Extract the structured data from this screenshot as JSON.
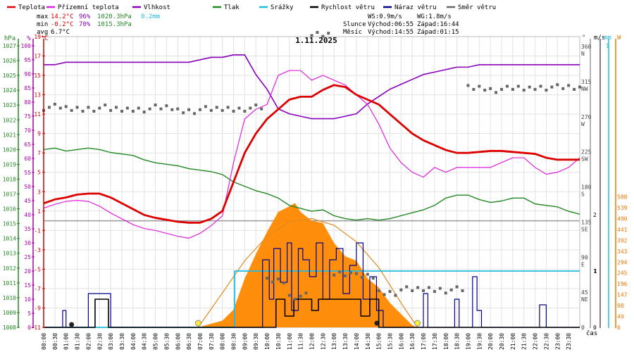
{
  "colors": {
    "temp": "#dd0000",
    "feels": "#dd22dd",
    "hum": "#8800bb",
    "press": "#228822",
    "rain": "#22bbdd",
    "wind": "#000000",
    "gust": "#000088",
    "dir": "#666666",
    "sun": "#ff8800",
    "axis_red": "#cc0000",
    "axis_violet": "#aa00aa",
    "axis_green": "#228822",
    "axis_cyan": "#22bbdd",
    "axis_orange": "#ee7700",
    "grid": "#e2e2e2",
    "zero": "#999999"
  },
  "legend": [
    {
      "label": "Teplota",
      "color": "#dd0000"
    },
    {
      "label": "Přízemní teplota",
      "color": "#dd22dd"
    },
    {
      "label": "Vlhkost",
      "color": "#8800bb"
    },
    {
      "label": "Tlak",
      "color": "#228822"
    },
    {
      "label": "Srážky",
      "color": "#22bbdd"
    },
    {
      "label": "Rychlost větru",
      "color": "#000000"
    },
    {
      "label": "Náraz větru",
      "color": "#000088"
    },
    {
      "label": "Směr větru",
      "color": "#666666"
    }
  ],
  "stats": {
    "max_label": "max",
    "max_temp": "14.2°C",
    "max_hum": "96%",
    "max_press": "1020.3hPa",
    "rain_total": "0.2mm",
    "min_label": "min",
    "min_temp": "-0.2°C",
    "min_hum": "70%",
    "min_press": "1015.3hPa",
    "avg_label": "avg",
    "avg_temp": "6.7°C"
  },
  "info": {
    "ws": "WS:0.9m/s",
    "wg": "WG:1.8m/s",
    "sun_label": "Slunce",
    "sunrise": "Východ:06:55",
    "sunset": "Západ:16:44",
    "moon_label": "Měsíc",
    "moonrise": "Východ:14:55",
    "moonset": "Západ:01:15"
  },
  "chart_data": {
    "type": "line",
    "title": "1.11.2025",
    "xlabel": "čas",
    "x_ticks": [
      "00:00",
      "00:30",
      "01:00",
      "01:30",
      "02:00",
      "02:30",
      "03:00",
      "03:30",
      "04:00",
      "04:30",
      "05:00",
      "05:30",
      "06:00",
      "06:30",
      "07:00",
      "07:30",
      "08:00",
      "08:30",
      "09:00",
      "09:30",
      "10:00",
      "10:30",
      "11:00",
      "11:30",
      "12:00",
      "12:30",
      "13:00",
      "13:30",
      "14:00",
      "14:30",
      "15:00",
      "15:30",
      "16:00",
      "16:30",
      "17:00",
      "17:30",
      "18:00",
      "18:30",
      "19:00",
      "19:30",
      "20:00",
      "20:30",
      "21:00",
      "21:30",
      "22:00",
      "22:30",
      "23:00",
      "23:30"
    ],
    "axes": {
      "pressure": {
        "label": "hPa",
        "range": [
          1008,
          1027.5
        ],
        "ticks": [
          "1027",
          "1026",
          "1025",
          "1024",
          "1023",
          "1022",
          "1021",
          "1020",
          "1019",
          "1018",
          "1017",
          "1016",
          "1015",
          "1014",
          "1013",
          "1012",
          "1011",
          "1010",
          "1009",
          "1008"
        ]
      },
      "humidity": {
        "label": "%",
        "range": [
          -15,
          100
        ],
        "ticks": [
          "100",
          "95",
          "90",
          "85",
          "80",
          "75",
          "70",
          "65",
          "60",
          "55",
          "50",
          "45",
          "40",
          "35",
          "30",
          "25",
          "20",
          "15",
          "10",
          "5",
          "0"
        ]
      },
      "temperature": {
        "label": "°C",
        "range": [
          -11,
          19
        ],
        "ticks": [
          "19",
          "17",
          "15",
          "13",
          "11",
          "9",
          "7",
          "5",
          "3",
          "1",
          "-1",
          "-3",
          "-5",
          "-7",
          "-9",
          "-11"
        ]
      },
      "direction": {
        "label": "°",
        "range": [
          0,
          360
        ],
        "ticks": [
          "360",
          "315",
          "270",
          "225",
          "180",
          "135",
          "90",
          "45",
          "0"
        ],
        "names": [
          "N",
          "NW",
          "W",
          "SW",
          "S",
          "SE",
          "E",
          "NE",
          ""
        ]
      },
      "wind": {
        "label": "m/s",
        "range": [
          0,
          2
        ],
        "ticks": [
          "2",
          "1",
          "0"
        ]
      },
      "rain": {
        "label": "mm",
        "range": [
          0,
          2
        ],
        "ticks": [
          "1"
        ]
      },
      "solar": {
        "label": "W",
        "range": [
          0,
          750
        ],
        "ticks": [
          "588",
          "539",
          "490",
          "441",
          "392",
          "343",
          "294",
          "245",
          "196",
          "147",
          "98",
          "49",
          "0"
        ]
      }
    },
    "series": [
      {
        "name": "Teplota",
        "unit": "°C",
        "x": [
          0,
          0.5,
          1,
          1.5,
          2,
          2.5,
          3,
          3.5,
          4,
          4.5,
          5,
          5.5,
          6,
          6.5,
          7,
          7.5,
          8,
          8.5,
          9,
          9.5,
          10,
          10.5,
          11,
          11.5,
          12,
          12.5,
          13,
          13.5,
          14,
          14.5,
          15,
          15.5,
          16,
          16.5,
          17,
          17.5,
          18,
          18.5,
          19,
          19.5,
          20,
          20.5,
          21,
          21.5,
          22,
          22.5,
          23,
          23.5,
          24
        ],
        "values": [
          1.8,
          2.2,
          2.4,
          2.7,
          2.8,
          2.8,
          2.4,
          1.8,
          1.2,
          0.6,
          0.3,
          0.1,
          -0.1,
          -0.2,
          -0.2,
          0.2,
          1.0,
          4.0,
          7.0,
          9.0,
          10.5,
          11.5,
          12.5,
          12.8,
          12.8,
          13.5,
          14.0,
          13.8,
          13.0,
          12.5,
          12.0,
          11.0,
          10.0,
          9.0,
          8.3,
          7.8,
          7.3,
          7.0,
          7.0,
          7.1,
          7.2,
          7.2,
          7.1,
          7.0,
          6.9,
          6.5,
          6.3,
          6.3,
          6.3
        ]
      },
      {
        "name": "Přízemní teplota",
        "unit": "°C",
        "x": [
          0,
          0.5,
          1,
          1.5,
          2,
          2.5,
          3,
          3.5,
          4,
          4.5,
          5,
          5.5,
          6,
          6.5,
          7,
          7.5,
          8,
          8.5,
          9,
          9.5,
          10,
          10.5,
          11,
          11.5,
          12,
          12.5,
          13,
          13.5,
          14,
          14.5,
          15,
          15.5,
          16,
          16.5,
          17,
          17.5,
          18,
          18.5,
          19,
          19.5,
          20,
          20.5,
          21,
          21.5,
          22,
          22.5,
          23,
          23.5,
          24
        ],
        "values": [
          1.3,
          1.7,
          2.0,
          2.1,
          2.0,
          1.5,
          0.8,
          0.2,
          -0.4,
          -0.8,
          -1.0,
          -1.3,
          -1.6,
          -1.8,
          -1.3,
          -0.5,
          0.5,
          6.0,
          10.5,
          11.5,
          12.0,
          15.0,
          15.5,
          15.5,
          14.5,
          15.0,
          14.5,
          14.0,
          13.0,
          12.0,
          10.0,
          7.5,
          6.0,
          5.0,
          4.5,
          5.5,
          5.0,
          5.5,
          5.5,
          5.5,
          5.5,
          6.0,
          6.5,
          6.5,
          5.5,
          4.8,
          5.0,
          5.5,
          6.5
        ]
      },
      {
        "name": "Vlhkost",
        "unit": "%",
        "x": [
          0,
          0.5,
          1,
          1.5,
          2,
          2.5,
          3,
          3.5,
          4,
          4.5,
          5,
          5.5,
          6,
          6.5,
          7,
          7.5,
          8,
          8.5,
          9,
          9.5,
          10,
          10.5,
          11,
          11.5,
          12,
          12.5,
          13,
          13.5,
          14,
          14.5,
          15,
          15.5,
          16,
          16.5,
          17,
          17.5,
          18,
          18.5,
          19,
          19.5,
          20,
          20.5,
          21,
          21.5,
          22,
          22.5,
          23,
          23.5,
          24
        ],
        "values": [
          92,
          92,
          93,
          93,
          93,
          93,
          93,
          93,
          93,
          93,
          93,
          93,
          93,
          93,
          94,
          95,
          95,
          96,
          96,
          88,
          82,
          74,
          72,
          71,
          70,
          70,
          70,
          71,
          72,
          76,
          79,
          82,
          84,
          86,
          88,
          89,
          90,
          91,
          91,
          92,
          92,
          92,
          92,
          92,
          92,
          92,
          92,
          92,
          92
        ]
      },
      {
        "name": "Tlak",
        "unit": "hPa",
        "x": [
          0,
          0.5,
          1,
          1.5,
          2,
          2.5,
          3,
          3.5,
          4,
          4.5,
          5,
          5.5,
          6,
          6.5,
          7,
          7.5,
          8,
          8.5,
          9,
          9.5,
          10,
          10.5,
          11,
          11.5,
          12,
          12.5,
          13,
          13.5,
          14,
          14.5,
          15,
          15.5,
          16,
          16.5,
          17,
          17.5,
          18,
          18.5,
          19,
          19.5,
          20,
          20.5,
          21,
          21.5,
          22,
          22.5,
          23,
          23.5,
          24
        ],
        "values": [
          1020.1,
          1020.2,
          1020.0,
          1020.1,
          1020.2,
          1020.1,
          1019.9,
          1019.8,
          1019.7,
          1019.4,
          1019.2,
          1019.1,
          1019.0,
          1018.8,
          1018.7,
          1018.6,
          1018.4,
          1017.9,
          1017.6,
          1017.3,
          1017.1,
          1016.8,
          1016.3,
          1016.1,
          1015.9,
          1016.0,
          1015.6,
          1015.4,
          1015.3,
          1015.4,
          1015.3,
          1015.4,
          1015.6,
          1015.8,
          1016.0,
          1016.3,
          1016.8,
          1017.0,
          1017.0,
          1016.7,
          1016.5,
          1016.6,
          1016.8,
          1016.8,
          1016.4,
          1016.3,
          1016.2,
          1015.9,
          1015.7
        ]
      },
      {
        "name": "Srážky",
        "unit": "mm",
        "x": [
          0,
          8.5,
          8.55,
          24
        ],
        "values": [
          0,
          0,
          0.2,
          0.2
        ]
      },
      {
        "name": "Rychlost větru",
        "unit": "m/s",
        "x": [
          0,
          2,
          2.3,
          2.6,
          2.9,
          3.5,
          9,
          10,
          10.4,
          10.8,
          11.2,
          11.6,
          12,
          12.3,
          12.6,
          13,
          13.4,
          13.8,
          14.2,
          14.6,
          15,
          24
        ],
        "values": [
          0,
          0,
          0.5,
          0.5,
          0,
          0,
          0,
          0,
          0.5,
          0.2,
          0.5,
          0.5,
          0.3,
          0.5,
          0.5,
          0.5,
          0.5,
          0.5,
          0.2,
          0.5,
          0,
          0
        ]
      },
      {
        "name": "Náraz větru",
        "unit": "m/s",
        "x": [
          0,
          0.7,
          0.85,
          1.0,
          1.8,
          2.0,
          2.4,
          2.6,
          3.0,
          3.3,
          9.5,
          9.8,
          10.1,
          10.3,
          10.6,
          10.9,
          11.1,
          11.4,
          11.6,
          11.9,
          12.2,
          12.5,
          12.8,
          13.1,
          13.4,
          13.7,
          14.0,
          14.3,
          14.6,
          14.9,
          15.2,
          16.8,
          17.0,
          17.2,
          18.2,
          18.4,
          18.6,
          19.0,
          19.2,
          19.4,
          19.6,
          22.0,
          22.2,
          22.5,
          24
        ],
        "values": [
          0,
          0,
          0.3,
          0,
          0,
          0.6,
          0.6,
          0.6,
          0,
          0,
          0,
          1.2,
          0.5,
          1.4,
          0.8,
          1.5,
          0.3,
          1.4,
          1.2,
          0.9,
          1.5,
          0.5,
          1.2,
          1.4,
          0.6,
          1.1,
          1.5,
          0.5,
          0.9,
          0.3,
          0,
          0,
          0.6,
          0,
          0,
          0.5,
          0,
          0,
          0.9,
          0.3,
          0,
          0,
          0.4,
          0,
          0
        ]
      },
      {
        "name": "Směr větru",
        "unit": "°",
        "x": [
          0,
          1,
          2,
          3,
          4,
          5,
          6,
          7,
          8,
          9,
          10,
          11,
          12,
          13,
          14,
          15,
          16,
          17,
          18,
          19,
          20,
          21,
          22,
          23,
          24
        ],
        "values": [
          282,
          280,
          281,
          279,
          280,
          281,
          278,
          279,
          280,
          281,
          60,
          40,
          375,
          70,
          65,
          45,
          48,
          49,
          48,
          307,
          305,
          306,
          308,
          307,
          306
        ]
      },
      {
        "name": "Sluneční svit",
        "unit": "W",
        "x": [
          6.9,
          8,
          8.5,
          9,
          9.5,
          10,
          10.5,
          11,
          11.25,
          11.5,
          12,
          12.5,
          13,
          13.5,
          14,
          14.5,
          15,
          15.5,
          16,
          16.5,
          16.7
        ],
        "values": [
          0,
          30,
          80,
          220,
          330,
          430,
          520,
          545,
          560,
          520,
          480,
          470,
          380,
          320,
          300,
          220,
          180,
          110,
          60,
          10,
          0
        ]
      },
      {
        "name": "Teoretický svit",
        "unit": "W",
        "x": [
          6.917,
          8,
          9,
          10,
          11,
          12,
          13,
          14,
          15,
          16,
          16.733
        ],
        "values": [
          0,
          155,
          300,
          410,
          475,
          490,
          460,
          385,
          270,
          110,
          0
        ]
      }
    ],
    "markers": {
      "sunrise_hour": 6.917,
      "sunset_hour": 16.733,
      "moonrise_hour": 14.917,
      "moonset_hour": 1.25
    }
  }
}
